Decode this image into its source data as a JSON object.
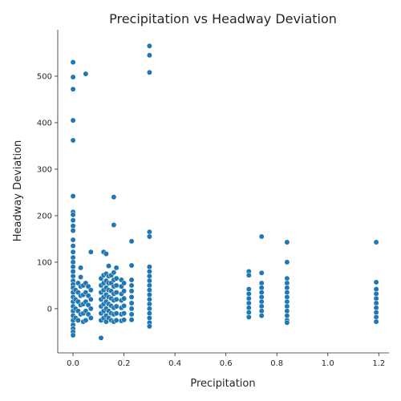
{
  "chart_data": {
    "type": "scatter",
    "title": "Precipitation vs Headway Deviation",
    "xlabel": "Precipitation",
    "ylabel": "Headway Deviation",
    "xlim": [
      -0.06,
      1.24
    ],
    "ylim": [
      -95,
      600
    ],
    "xticks": [
      "0.0",
      "0.2",
      "0.4",
      "0.6",
      "0.8",
      "1.0",
      "1.2"
    ],
    "yticks": [
      "0",
      "100",
      "200",
      "300",
      "400",
      "500"
    ],
    "grid": false,
    "legend": "none",
    "marker_color": "#1f77b4",
    "points": [
      [
        0.0,
        530
      ],
      [
        0.0,
        498
      ],
      [
        0.0,
        472
      ],
      [
        0.0,
        405
      ],
      [
        0.0,
        362
      ],
      [
        0.0,
        242
      ],
      [
        0.0,
        208
      ],
      [
        0.0,
        202
      ],
      [
        0.0,
        190
      ],
      [
        0.0,
        178
      ],
      [
        0.0,
        168
      ],
      [
        0.0,
        148
      ],
      [
        0.0,
        135
      ],
      [
        0.0,
        122
      ],
      [
        0.0,
        110
      ],
      [
        0.0,
        100
      ],
      [
        0.0,
        90
      ],
      [
        0.0,
        80
      ],
      [
        0.0,
        70
      ],
      [
        0.0,
        60
      ],
      [
        0.0,
        52
      ],
      [
        0.0,
        45
      ],
      [
        0.0,
        35
      ],
      [
        0.0,
        25
      ],
      [
        0.0,
        15
      ],
      [
        0.0,
        5
      ],
      [
        0.0,
        -5
      ],
      [
        0.0,
        -15
      ],
      [
        0.0,
        -25
      ],
      [
        0.0,
        -35
      ],
      [
        0.0,
        -43
      ],
      [
        0.0,
        -50
      ],
      [
        0.0,
        -57
      ],
      [
        0.01,
        40
      ],
      [
        0.01,
        20
      ],
      [
        0.01,
        0
      ],
      [
        0.01,
        -20
      ],
      [
        0.02,
        55
      ],
      [
        0.02,
        35
      ],
      [
        0.02,
        15
      ],
      [
        0.02,
        -5
      ],
      [
        0.02,
        -25
      ],
      [
        0.03,
        88
      ],
      [
        0.03,
        68
      ],
      [
        0.03,
        48
      ],
      [
        0.03,
        28
      ],
      [
        0.03,
        8
      ],
      [
        0.03,
        -12
      ],
      [
        0.04,
        50
      ],
      [
        0.04,
        30
      ],
      [
        0.04,
        10
      ],
      [
        0.04,
        -10
      ],
      [
        0.04,
        -28
      ],
      [
        0.05,
        505
      ],
      [
        0.05,
        55
      ],
      [
        0.05,
        35
      ],
      [
        0.05,
        15
      ],
      [
        0.05,
        -5
      ],
      [
        0.05,
        -25
      ],
      [
        0.06,
        48
      ],
      [
        0.06,
        28
      ],
      [
        0.06,
        8
      ],
      [
        0.06,
        -12
      ],
      [
        0.07,
        122
      ],
      [
        0.07,
        40
      ],
      [
        0.07,
        20
      ],
      [
        0.07,
        0
      ],
      [
        0.07,
        -20
      ],
      [
        0.11,
        65
      ],
      [
        0.11,
        50
      ],
      [
        0.11,
        35
      ],
      [
        0.11,
        20
      ],
      [
        0.11,
        5
      ],
      [
        0.11,
        -10
      ],
      [
        0.11,
        -25
      ],
      [
        0.11,
        -63
      ],
      [
        0.12,
        122
      ],
      [
        0.12,
        72
      ],
      [
        0.12,
        55
      ],
      [
        0.12,
        40
      ],
      [
        0.12,
        25
      ],
      [
        0.12,
        10
      ],
      [
        0.12,
        -5
      ],
      [
        0.12,
        -20
      ],
      [
        0.13,
        118
      ],
      [
        0.13,
        75
      ],
      [
        0.13,
        60
      ],
      [
        0.13,
        45
      ],
      [
        0.13,
        30
      ],
      [
        0.13,
        15
      ],
      [
        0.13,
        0
      ],
      [
        0.13,
        -15
      ],
      [
        0.13,
        -28
      ],
      [
        0.14,
        92
      ],
      [
        0.14,
        70
      ],
      [
        0.14,
        55
      ],
      [
        0.14,
        40
      ],
      [
        0.14,
        25
      ],
      [
        0.14,
        10
      ],
      [
        0.14,
        -5
      ],
      [
        0.14,
        -20
      ],
      [
        0.15,
        72
      ],
      [
        0.15,
        55
      ],
      [
        0.15,
        38
      ],
      [
        0.15,
        22
      ],
      [
        0.15,
        6
      ],
      [
        0.15,
        -10
      ],
      [
        0.15,
        -25
      ],
      [
        0.16,
        240
      ],
      [
        0.16,
        180
      ],
      [
        0.16,
        78
      ],
      [
        0.16,
        62
      ],
      [
        0.16,
        48
      ],
      [
        0.16,
        32
      ],
      [
        0.16,
        18
      ],
      [
        0.16,
        2
      ],
      [
        0.16,
        -12
      ],
      [
        0.16,
        -28
      ],
      [
        0.17,
        88
      ],
      [
        0.17,
        65
      ],
      [
        0.17,
        50
      ],
      [
        0.17,
        35
      ],
      [
        0.17,
        20
      ],
      [
        0.17,
        5
      ],
      [
        0.17,
        -10
      ],
      [
        0.17,
        -25
      ],
      [
        0.19,
        62
      ],
      [
        0.19,
        48
      ],
      [
        0.19,
        32
      ],
      [
        0.19,
        18
      ],
      [
        0.19,
        2
      ],
      [
        0.19,
        -12
      ],
      [
        0.19,
        -26
      ],
      [
        0.2,
        55
      ],
      [
        0.2,
        38
      ],
      [
        0.2,
        22
      ],
      [
        0.2,
        6
      ],
      [
        0.2,
        -10
      ],
      [
        0.2,
        -24
      ],
      [
        0.23,
        145
      ],
      [
        0.23,
        93
      ],
      [
        0.23,
        62
      ],
      [
        0.23,
        50
      ],
      [
        0.23,
        38
      ],
      [
        0.23,
        25
      ],
      [
        0.23,
        12
      ],
      [
        0.23,
        0
      ],
      [
        0.23,
        -12
      ],
      [
        0.23,
        -24
      ],
      [
        0.3,
        565
      ],
      [
        0.3,
        545
      ],
      [
        0.3,
        508
      ],
      [
        0.3,
        165
      ],
      [
        0.3,
        155
      ],
      [
        0.3,
        90
      ],
      [
        0.3,
        80
      ],
      [
        0.3,
        70
      ],
      [
        0.3,
        60
      ],
      [
        0.3,
        50
      ],
      [
        0.3,
        40
      ],
      [
        0.3,
        30
      ],
      [
        0.3,
        20
      ],
      [
        0.3,
        10
      ],
      [
        0.3,
        0
      ],
      [
        0.3,
        -10
      ],
      [
        0.3,
        -20
      ],
      [
        0.3,
        -30
      ],
      [
        0.3,
        -38
      ],
      [
        0.69,
        80
      ],
      [
        0.69,
        72
      ],
      [
        0.69,
        42
      ],
      [
        0.69,
        32
      ],
      [
        0.69,
        22
      ],
      [
        0.69,
        12
      ],
      [
        0.69,
        2
      ],
      [
        0.69,
        -8
      ],
      [
        0.69,
        -18
      ],
      [
        0.74,
        155
      ],
      [
        0.74,
        77
      ],
      [
        0.74,
        55
      ],
      [
        0.74,
        45
      ],
      [
        0.74,
        35
      ],
      [
        0.74,
        25
      ],
      [
        0.74,
        15
      ],
      [
        0.74,
        5
      ],
      [
        0.74,
        -5
      ],
      [
        0.74,
        -15
      ],
      [
        0.84,
        143
      ],
      [
        0.84,
        100
      ],
      [
        0.84,
        65
      ],
      [
        0.84,
        55
      ],
      [
        0.84,
        45
      ],
      [
        0.84,
        35
      ],
      [
        0.84,
        25
      ],
      [
        0.84,
        15
      ],
      [
        0.84,
        5
      ],
      [
        0.84,
        -5
      ],
      [
        0.84,
        -15
      ],
      [
        0.84,
        -25
      ],
      [
        0.84,
        -30
      ],
      [
        1.19,
        143
      ],
      [
        1.19,
        57
      ],
      [
        1.19,
        42
      ],
      [
        1.19,
        32
      ],
      [
        1.19,
        22
      ],
      [
        1.19,
        12
      ],
      [
        1.19,
        2
      ],
      [
        1.19,
        -8
      ],
      [
        1.19,
        -18
      ],
      [
        1.19,
        -28
      ]
    ]
  }
}
